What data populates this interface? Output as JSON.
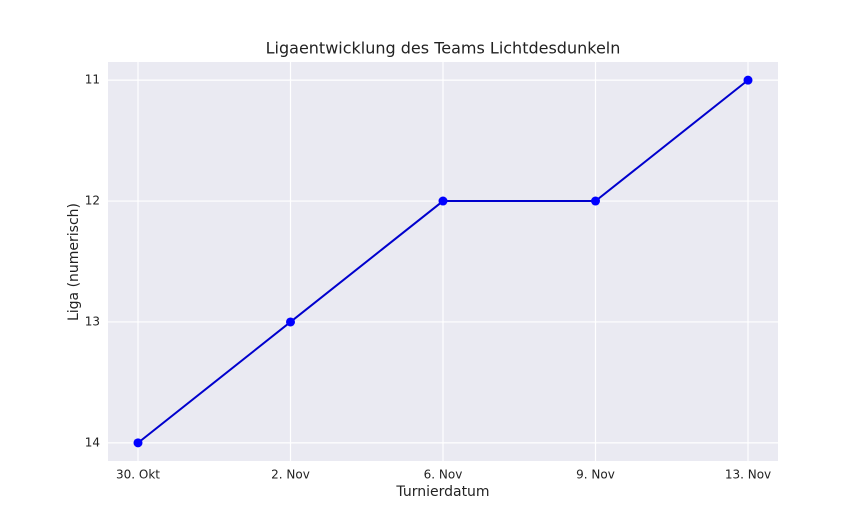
{
  "chart_data": {
    "type": "line",
    "title": "Ligaentwicklung des Teams Lichtdesdunkeln",
    "x_label": "Turnierdatum",
    "y_label": "Liga (numerisch)",
    "categories": [
      "30. Okt",
      "2. Nov",
      "6. Nov",
      "9. Nov",
      "13. Nov"
    ],
    "series": [
      {
        "name": "Liga",
        "color": "#0000cd",
        "marker_color": "#0000ff",
        "values": [
          14,
          13,
          12,
          12,
          11
        ]
      }
    ],
    "ylim": [
      14.15,
      10.85
    ],
    "yticks": [
      11,
      12,
      13,
      14
    ],
    "grid": true,
    "legend": false
  }
}
